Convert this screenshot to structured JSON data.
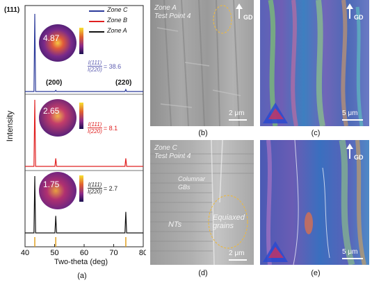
{
  "figure": {
    "xrd_panel": {
      "label": "(a)",
      "ylabel": "Intensity",
      "xlabel": "Two-theta (deg)",
      "xticks": [
        "40",
        "50",
        "60",
        "70",
        "80"
      ],
      "peak_labels": [
        "(111)",
        "(200)",
        "(220)"
      ],
      "legend": [
        {
          "name": "Zone C",
          "color": "#2b3a9a"
        },
        {
          "name": "Zone B",
          "color": "#e02020"
        },
        {
          "name": "Zone A",
          "color": "#111111"
        }
      ],
      "insets": [
        {
          "value": "4.87",
          "ratio": "= 38.6",
          "color": "#5b5bb0"
        },
        {
          "value": "2.65",
          "ratio": "= 8.1",
          "color": "#e02020"
        },
        {
          "value": "1.75",
          "ratio": "= 2.7",
          "color": "#222222"
        }
      ],
      "ratio_numerator": "I(111)",
      "ratio_denominator": "I(220)"
    },
    "panel_b": {
      "label": "(b)",
      "line1": "Zone A",
      "line2": "Test Point 4",
      "gd": "GD",
      "scale": "2 μm"
    },
    "panel_c": {
      "label": "(c)",
      "gd": "GD",
      "scale": "5 μm"
    },
    "panel_d": {
      "label": "(d)",
      "line1": "Zone C",
      "line2": "Test Point 4",
      "columnar": "Columnar GBs",
      "nts": "NTs",
      "equiaxed": "Equiaxed grains",
      "scale": "2 μm"
    },
    "panel_e": {
      "label": "(e)",
      "gd": "GD",
      "scale": "5 μm"
    }
  },
  "chart_data": {
    "type": "line",
    "xlabel": "Two-theta (deg)",
    "ylabel": "Intensity",
    "xlim": [
      40,
      80
    ],
    "series": [
      {
        "name": "Zone C",
        "color": "#2b3a9a",
        "peaks": [
          [
            43.3,
            1.0
          ],
          [
            50.4,
            0.015
          ],
          [
            74.1,
            0.025
          ]
        ]
      },
      {
        "name": "Zone B",
        "color": "#e02020",
        "peaks": [
          [
            43.3,
            1.0
          ],
          [
            50.4,
            0.12
          ],
          [
            74.1,
            0.12
          ]
        ]
      },
      {
        "name": "Zone A",
        "color": "#111111",
        "peaks": [
          [
            43.3,
            1.0
          ],
          [
            50.4,
            0.3
          ],
          [
            74.1,
            0.37
          ]
        ]
      }
    ],
    "reference_lines": [
      43.3,
      50.4,
      74.1
    ]
  }
}
